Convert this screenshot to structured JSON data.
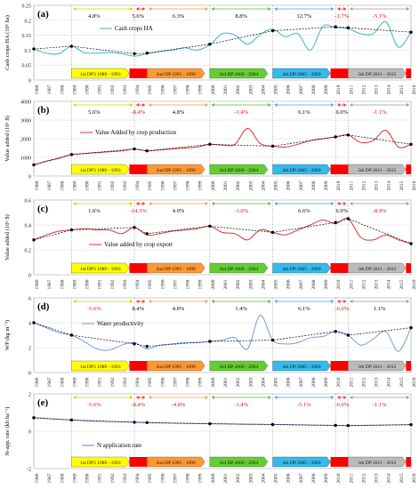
{
  "figure": {
    "colors": {
      "dp1": "#ffff00",
      "dp2": "#ff9933",
      "dp3": "#66cc33",
      "dp4": "#33bbee",
      "dp5": "#bbbbbb",
      "gap": "#ff0000",
      "trend": "#000000",
      "grid": "#d9d9d9",
      "neg_pct": "#ff0000",
      "pos_pct": "#000000"
    },
    "years": [
      "1986",
      "1987",
      "1988",
      "1989",
      "1990",
      "1991",
      "1992",
      "1993",
      "1994",
      "1995",
      "1996",
      "1997",
      "1998",
      "1999",
      "2000",
      "2001",
      "2002",
      "2003",
      "2004",
      "2005",
      "2006",
      "2007",
      "2008",
      "2009",
      "2010",
      "2011",
      "2012",
      "2013",
      "2014",
      "2015",
      "2016"
    ],
    "dp_labels": {
      "dp1": "1st DP3 1989 - 1993",
      "dp2": "2nd DP 1995 - 1999",
      "dp3": "3rd DP 2000 - 2004",
      "dp4": "4th DP 2005 - 2009",
      "dp5": "5th DP 2011 - 2015"
    }
  },
  "chart_data": [
    {
      "panel": "(a)",
      "type": "line",
      "legend": "Cash crops HA",
      "ylabel": "Cash crops HA (10⁶ ha)",
      "ylim": [
        0,
        0.25
      ],
      "yticks": [
        "0",
        "0.05",
        "0.1",
        "0.15",
        "0.2",
        "0.25"
      ],
      "color": "#3fb6c4",
      "series": [
        {
          "name": "Cash crops HA",
          "x": [
            1986,
            1987,
            1988,
            1989,
            1990,
            1991,
            1992,
            1993,
            1994,
            1995,
            1996,
            1997,
            1998,
            1999,
            2000,
            2001,
            2002,
            2003,
            2004,
            2005,
            2006,
            2007,
            2008,
            2009,
            2010,
            2011,
            2012,
            2013,
            2014,
            2015,
            2016
          ],
          "values": [
            0.104,
            0.09,
            0.088,
            0.113,
            0.092,
            0.09,
            0.092,
            0.088,
            0.08,
            0.088,
            0.095,
            0.1,
            0.108,
            0.1,
            0.118,
            0.155,
            0.15,
            0.12,
            0.152,
            0.17,
            0.145,
            0.155,
            0.1,
            0.18,
            0.175,
            0.172,
            0.155,
            0.155,
            0.195,
            0.11,
            0.16
          ]
        }
      ],
      "trend": {
        "x": [
          1986,
          1989,
          1994,
          1995,
          2000,
          2005,
          2010,
          2011,
          2016
        ],
        "values": [
          0.104,
          0.113,
          0.088,
          0.09,
          0.12,
          0.165,
          0.178,
          0.175,
          0.16
        ]
      },
      "pct_labels": [
        {
          "text": "4.8%",
          "x": 1990.8
        },
        {
          "text": "5.6%",
          "x": 1994.3
        },
        {
          "text": "6.3%",
          "x": 1997.5
        },
        {
          "text": "8.8%",
          "x": 2002.5
        },
        {
          "text": "12.7%",
          "x": 2007.5
        },
        {
          "text": "-1.7%",
          "x": 2010.5
        },
        {
          "text": "-5.1%",
          "x": 2013.5
        }
      ]
    },
    {
      "panel": "(b)",
      "type": "line",
      "legend": "Value Added by crop production",
      "ylabel": "Value added (10⁶ $)",
      "ylim": [
        0,
        4000
      ],
      "yticks": [
        "0",
        "1000",
        "2000",
        "3000",
        "4000"
      ],
      "color": "#dd3333",
      "series": [
        {
          "name": "Value Added by crop production",
          "x": [
            1986,
            1987,
            1988,
            1989,
            1990,
            1991,
            1992,
            1993,
            1994,
            1995,
            1996,
            1997,
            1998,
            1999,
            2000,
            2001,
            2002,
            2003,
            2004,
            2005,
            2006,
            2007,
            2008,
            2009,
            2010,
            2011,
            2012,
            2013,
            2014,
            2015,
            2016
          ],
          "values": [
            600,
            800,
            950,
            1150,
            1200,
            1250,
            1300,
            1350,
            1450,
            1350,
            1400,
            1450,
            1500,
            1550,
            1700,
            1650,
            1700,
            2550,
            1750,
            1600,
            1550,
            1700,
            1900,
            2000,
            2100,
            2200,
            1800,
            1900,
            2450,
            1550,
            1700
          ]
        }
      ],
      "trend": {
        "x": [
          1986,
          1989,
          1994,
          1995,
          2000,
          2005,
          2010,
          2011,
          2016
        ],
        "values": [
          600,
          1150,
          1450,
          1350,
          1700,
          1600,
          2100,
          2200,
          1700
        ]
      },
      "pct_labels": [
        {
          "text": "5.6%",
          "x": 1990.8
        },
        {
          "text": "-8.4%",
          "x": 1994.3
        },
        {
          "text": "4.8%",
          "x": 1997.5
        },
        {
          "text": "-1.4%",
          "x": 2002.5
        },
        {
          "text": "6.1%",
          "x": 2007.5
        },
        {
          "text": "6.0%",
          "x": 2010.5
        },
        {
          "text": "-1.1%",
          "x": 2013.5
        }
      ]
    },
    {
      "panel": "(c)",
      "type": "line",
      "legend": "Value added by crop export",
      "ylabel": "Value added (10⁶ $)",
      "ylim": [
        0,
        0.6
      ],
      "yticks": [
        "0",
        "0.2",
        "0.4",
        "0.6"
      ],
      "color": "#dd3333",
      "series": [
        {
          "name": "Value added by crop export",
          "x": [
            1986,
            1987,
            1988,
            1989,
            1990,
            1991,
            1992,
            1993,
            1994,
            1995,
            1996,
            1997,
            1998,
            1999,
            2000,
            2001,
            2002,
            2003,
            2004,
            2005,
            2006,
            2007,
            2008,
            2009,
            2010,
            2011,
            2012,
            2013,
            2014,
            2015,
            2016
          ],
          "values": [
            0.28,
            0.32,
            0.35,
            0.36,
            0.37,
            0.36,
            0.36,
            0.33,
            0.38,
            0.32,
            0.33,
            0.35,
            0.36,
            0.37,
            0.39,
            0.34,
            0.33,
            0.28,
            0.36,
            0.34,
            0.32,
            0.36,
            0.4,
            0.44,
            0.41,
            0.45,
            0.3,
            0.28,
            0.32,
            0.28,
            0.25
          ]
        }
      ],
      "trend": {
        "x": [
          1986,
          1989,
          1994,
          1995,
          2000,
          2005,
          2010,
          2011,
          2016
        ],
        "values": [
          0.28,
          0.36,
          0.38,
          0.33,
          0.39,
          0.34,
          0.42,
          0.45,
          0.25
        ]
      },
      "pct_labels": [
        {
          "text": "1.6%",
          "x": 1990.8
        },
        {
          "text": "-14.3%",
          "x": 1994.3
        },
        {
          "text": "4.0%",
          "x": 1997.5
        },
        {
          "text": "-1.0%",
          "x": 2002.5
        },
        {
          "text": "6.6%",
          "x": 2007.5
        },
        {
          "text": "6.9%",
          "x": 2010.5
        },
        {
          "text": "-8.9%",
          "x": 2013.5
        }
      ]
    },
    {
      "panel": "(d)",
      "type": "line",
      "legend": "Water productivity",
      "ylabel": "WP (kg m⁻³)",
      "ylim": [
        0,
        6
      ],
      "yticks": [
        "0",
        "2",
        "4",
        "6"
      ],
      "color": "#7799dd",
      "series": [
        {
          "name": "Water productivity",
          "x": [
            1986,
            1987,
            1988,
            1989,
            1990,
            1991,
            1992,
            1993,
            1994,
            1995,
            1996,
            1997,
            1998,
            1999,
            2000,
            2001,
            2002,
            2003,
            2004,
            2005,
            2006,
            2007,
            2008,
            2009,
            2010,
            2011,
            2012,
            2013,
            2014,
            2015,
            2016
          ],
          "values": [
            4.0,
            3.6,
            3.2,
            3.0,
            2.5,
            1.9,
            1.8,
            2.2,
            2.4,
            1.9,
            2.2,
            2.3,
            2.4,
            2.4,
            2.5,
            2.6,
            2.8,
            1.9,
            4.6,
            2.6,
            2.3,
            2.4,
            2.8,
            2.9,
            3.3,
            3.0,
            2.2,
            2.7,
            3.3,
            1.7,
            3.6
          ]
        }
      ],
      "trend": {
        "x": [
          1986,
          1989,
          1994,
          1995,
          2000,
          2005,
          2010,
          2011,
          2016
        ],
        "values": [
          4.0,
          3.0,
          2.3,
          2.1,
          2.5,
          2.6,
          3.3,
          3.0,
          3.6
        ]
      },
      "pct_labels": [
        {
          "text": "-5.6%",
          "x": 1990.8
        },
        {
          "text": "8.4%",
          "x": 1994.3
        },
        {
          "text": "4.8%",
          "x": 1997.5
        },
        {
          "text": "1.4%",
          "x": 2002.5
        },
        {
          "text": "6.1%",
          "x": 2007.5
        },
        {
          "text": "-6.0%",
          "x": 2010.5
        },
        {
          "text": "1.1%",
          "x": 2013.5
        }
      ]
    },
    {
      "panel": "(e)",
      "type": "line",
      "legend": "N application rate",
      "ylabel": "N-app. rate (kh ha⁻¹)",
      "ylim": [
        -2,
        2
      ],
      "yticks": [
        "-2",
        "0",
        "2"
      ],
      "color": "#9966cc",
      "series": [
        {
          "name": "N application rate",
          "x": [
            1986,
            1987,
            1988,
            1989,
            1990,
            1991,
            1992,
            1993,
            1994,
            1995,
            1996,
            1997,
            1998,
            1999,
            2000,
            2001,
            2002,
            2003,
            2004,
            2005,
            2006,
            2007,
            2008,
            2009,
            2010,
            2011,
            2012,
            2013,
            2014,
            2015,
            2016
          ],
          "values": [
            0.72,
            0.68,
            0.64,
            0.6,
            0.56,
            0.54,
            0.52,
            0.5,
            0.48,
            0.46,
            0.44,
            0.43,
            0.42,
            0.41,
            0.4,
            0.39,
            0.38,
            0.37,
            0.37,
            0.36,
            0.35,
            0.34,
            0.33,
            0.32,
            0.31,
            0.3,
            0.31,
            0.32,
            0.33,
            0.34,
            0.35
          ]
        }
      ],
      "trend": {
        "x": [
          1986,
          1989,
          1994,
          1995,
          2000,
          2005,
          2010,
          2011,
          2016
        ],
        "values": [
          0.72,
          0.6,
          0.48,
          0.46,
          0.4,
          0.36,
          0.31,
          0.3,
          0.35
        ]
      },
      "pct_labels": [
        {
          "text": "-5.6%",
          "x": 1990.8
        },
        {
          "text": "-8.4%",
          "x": 1994.3
        },
        {
          "text": "-4.8%",
          "x": 1997.5
        },
        {
          "text": "-1.4%",
          "x": 2002.5
        },
        {
          "text": "-5.1%",
          "x": 2007.5
        },
        {
          "text": "-6.0%",
          "x": 2010.5
        },
        {
          "text": "-1.1%",
          "x": 2013.5
        }
      ]
    }
  ]
}
